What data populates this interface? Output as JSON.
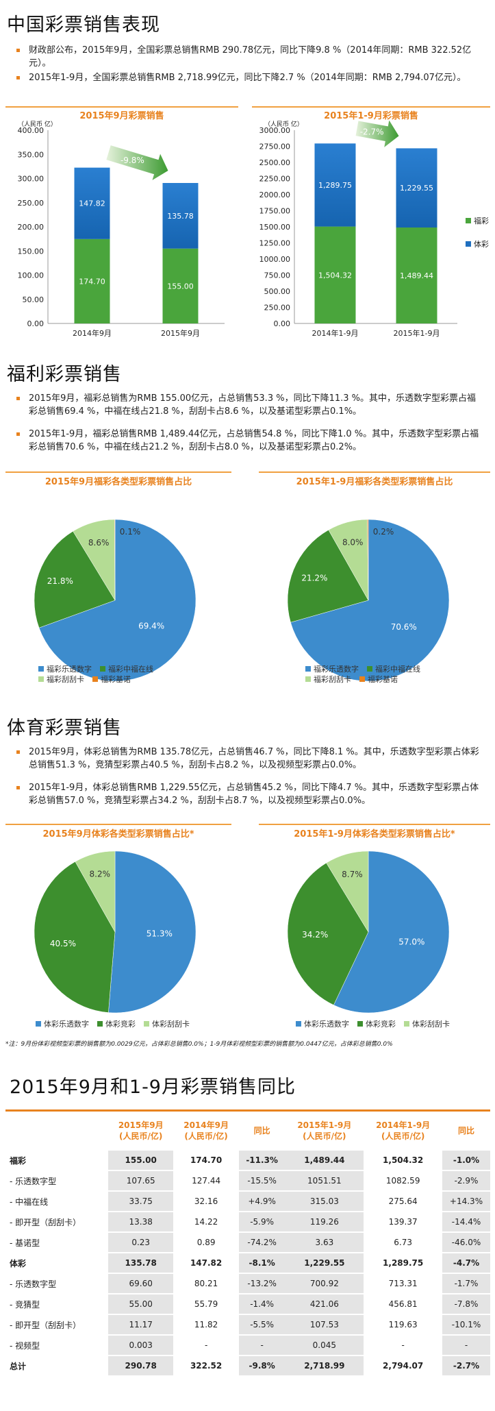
{
  "section1": {
    "title": "中国彩票销售表现",
    "bullets": [
      "财政部公布，2015年9月，全国彩票总销售RMB 290.78亿元，同比下降9.8 %（2014年同期：RMB 322.52亿元）。",
      "2015年1-9月，全国彩票总销售RMB 2,718.99亿元，同比下降2.7 %（2014年同期：RMB 2,794.07亿元）。"
    ]
  },
  "section2": {
    "title": "福利彩票销售",
    "bullets": [
      "2015年9月，福彩总销售为RMB 155.00亿元，占总销售53.3 %，同比下降11.3 %。其中，乐透数字型彩票占福彩总销售69.4 %，中福在线占21.8 %，刮刮卡占8.6 %，以及基诺型彩票占0.1%。",
      "2015年1-9月，福彩总销售RMB 1,489.44亿元，占总销售54.8 %，同比下降1.0 %。其中，乐透数字型彩票占福彩总销售70.6 %，中福在线占21.2 %，刮刮卡占8.0 %，以及基诺型彩票占0.2%。"
    ]
  },
  "section3": {
    "title": "体育彩票销售",
    "bullets": [
      "2015年9月，体彩总销售为RMB 135.78亿元，占总销售46.7 %，同比下降8.1 %。其中，乐透数字型彩票占体彩总销售51.3 %，竞猜型彩票占40.5 %，刮刮卡占8.2 %，以及视频型彩票占0.0%。",
      "2015年1-9月，体彩总销售RMB 1,229.55亿元，占总销售45.2 %，同比下降4.7 %。其中，乐透数字型彩票占体彩总销售57.0 %，竞猜型彩票占34.2 %，刮刮卡占8.7 %，以及视频型彩票占0.0%。"
    ],
    "note": "*注：9月份体彩视频型彩票的销售额为0.0029亿元，占体彩总销售0.0%；1-9月体彩视频型彩票的销售额为0.0447亿元，占体彩总销售0.0%"
  },
  "section4": {
    "title": "2015年9月和1-9月彩票销售同比"
  },
  "colors": {
    "fucai": "#3d8f2e",
    "ticai": "#1f6fbf",
    "accent": "#e8821e",
    "light_green": "#b4dc94",
    "orange": "#e8821e"
  },
  "chart_data": [
    {
      "type": "bar",
      "title": "2015年9月彩票销售",
      "ylabel": "（人民币 亿）",
      "categories": [
        "2014年9月",
        "2015年9月"
      ],
      "series": [
        {
          "name": "福彩",
          "values": [
            174.7,
            155.0
          ]
        },
        {
          "name": "体彩",
          "values": [
            147.82,
            135.78
          ]
        }
      ],
      "ylim": [
        0,
        400
      ],
      "yticks": [
        "0.00",
        "50.00",
        "100.00",
        "150.00",
        "200.00",
        "250.00",
        "300.00",
        "350.00",
        "400.00"
      ],
      "arrow_label": "-9.8%"
    },
    {
      "type": "bar",
      "title": "2015年1-9月彩票销售",
      "ylabel": "（人民币 亿）",
      "categories": [
        "2014年1-9月",
        "2015年1-9月"
      ],
      "series": [
        {
          "name": "福彩",
          "values": [
            1504.32,
            1489.44
          ]
        },
        {
          "name": "体彩",
          "values": [
            1289.75,
            1229.55
          ]
        }
      ],
      "ylim": [
        0,
        3000
      ],
      "yticks": [
        "0.00",
        "250.00",
        "500.00",
        "750.00",
        "1000.00",
        "1250.00",
        "1500.00",
        "1750.00",
        "2000.00",
        "2250.00",
        "2500.00",
        "2750.00",
        "3000.00"
      ],
      "value_labels": [
        [
          "1,504.32",
          "1,489.44"
        ],
        [
          "1,289.75",
          "1,229.55"
        ]
      ],
      "arrow_label": "-2.7%",
      "legend": [
        "福彩",
        "体彩"
      ]
    },
    {
      "type": "pie",
      "title": "2015年9月福彩各类型彩票销售占比",
      "labels": [
        "福彩乐透数字",
        "福彩中福在线",
        "福彩刮刮卡",
        "福彩基诺"
      ],
      "values": [
        69.4,
        21.8,
        8.6,
        0.1
      ],
      "colors": [
        "#3d8ccd",
        "#3d8f2e",
        "#b4dc94",
        "#e8821e"
      ]
    },
    {
      "type": "pie",
      "title": "2015年1-9月福彩各类型彩票销售占比",
      "labels": [
        "福彩乐透数字",
        "福彩中福在线",
        "福彩刮刮卡",
        "福彩基诺"
      ],
      "values": [
        70.6,
        21.2,
        8.0,
        0.2
      ],
      "colors": [
        "#3d8ccd",
        "#3d8f2e",
        "#b4dc94",
        "#e8821e"
      ]
    },
    {
      "type": "pie",
      "title": "2015年9月体彩各类型彩票销售占比*",
      "labels": [
        "体彩乐透数字",
        "体彩竞彩",
        "体彩刮刮卡"
      ],
      "values": [
        51.3,
        40.5,
        8.2
      ],
      "colors": [
        "#3d8ccd",
        "#3d8f2e",
        "#b4dc94"
      ]
    },
    {
      "type": "pie",
      "title": "2015年1-9月体彩各类型彩票销售占比*",
      "labels": [
        "体彩乐透数字",
        "体彩竞彩",
        "体彩刮刮卡"
      ],
      "values": [
        57.0,
        34.2,
        8.7
      ],
      "colors": [
        "#3d8ccd",
        "#3d8f2e",
        "#b4dc94"
      ]
    },
    {
      "type": "table",
      "headers": [
        "",
        "2015年9月\n(人民币/亿)",
        "2014年9月\n(人民币/亿)",
        "同比",
        "2015年1-9月\n(人民币/亿)",
        "2014年1-9月\n(人民币/亿)",
        "同比"
      ],
      "rows": [
        [
          "福彩",
          "155.00",
          "174.70",
          "-11.3%",
          "1,489.44",
          "1,504.32",
          "-1.0%"
        ],
        [
          "- 乐透数字型",
          "107.65",
          "127.44",
          "-15.5%",
          "1051.51",
          "1082.59",
          "-2.9%"
        ],
        [
          "- 中福在线",
          "33.75",
          "32.16",
          "+4.9%",
          "315.03",
          "275.64",
          "+14.3%"
        ],
        [
          "- 即开型（刮刮卡）",
          "13.38",
          "14.22",
          "-5.9%",
          "119.26",
          "139.37",
          "-14.4%"
        ],
        [
          "- 基诺型",
          "0.23",
          "0.89",
          "-74.2%",
          "3.63",
          "6.73",
          "-46.0%"
        ],
        [
          "体彩",
          "135.78",
          "147.82",
          "-8.1%",
          "1,229.55",
          "1,289.75",
          "-4.7%"
        ],
        [
          "- 乐透数字型",
          "69.60",
          "80.21",
          "-13.2%",
          "700.92",
          "713.31",
          "-1.7%"
        ],
        [
          "- 竞猜型",
          "55.00",
          "55.79",
          "-1.4%",
          "421.06",
          "456.81",
          "-7.8%"
        ],
        [
          "- 即开型（刮刮卡）",
          "11.17",
          "11.82",
          "-5.5%",
          "107.53",
          "119.63",
          "-10.1%"
        ],
        [
          "- 视频型",
          "0.003",
          "-",
          "-",
          "0.045",
          "-",
          "-"
        ],
        [
          "总计",
          "290.78",
          "322.52",
          "-9.8%",
          "2,718.99",
          "2,794.07",
          "-2.7%"
        ]
      ],
      "bold_rows": [
        0,
        5,
        10
      ]
    }
  ]
}
